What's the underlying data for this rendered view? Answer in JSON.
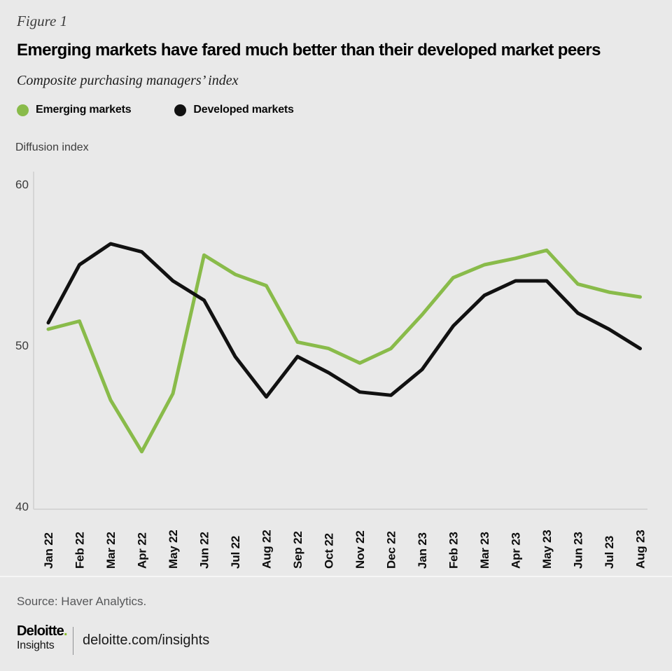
{
  "figure_label": "Figure 1",
  "title": "Emerging markets have fared much better than their developed market peers",
  "subtitle": "Composite purchasing managers’ index",
  "legend": [
    {
      "label": "Emerging markets",
      "color": "#89BB4A"
    },
    {
      "label": "Developed markets",
      "color": "#111111"
    }
  ],
  "axis_title": "Diffusion index",
  "source": "Source: Haver Analytics.",
  "footer": {
    "brand": "Deloitte",
    "brand_dot": ".",
    "brand_sub": "Insights",
    "link": "deloitte.com/insights"
  },
  "colors": {
    "background": "#e9e9e9",
    "emerging_green": "#89BB4A",
    "developed_black": "#111111",
    "axis_line": "#d5d5d5",
    "brand_dot_green": "#86BC25"
  },
  "chart_data": {
    "type": "line",
    "x": [
      "Jan 22",
      "Feb 22",
      "Mar 22",
      "Apr 22",
      "May 22",
      "Jun 22",
      "Jul 22",
      "Aug 22",
      "Sep 22",
      "Oct 22",
      "Nov 22",
      "Dec 22",
      "Jan 23",
      "Feb 23",
      "Mar 23",
      "Apr 23",
      "May 23",
      "Jun 23",
      "Jul 23",
      "Aug 23"
    ],
    "series": [
      {
        "name": "Emerging markets",
        "color": "#89BB4A",
        "values": [
          51.0,
          51.5,
          46.6,
          43.4,
          47.0,
          55.6,
          54.4,
          53.7,
          50.2,
          49.8,
          48.9,
          49.8,
          51.9,
          54.2,
          55.0,
          55.4,
          55.9,
          53.8,
          53.3,
          53.0
        ]
      },
      {
        "name": "Developed markets",
        "color": "#111111",
        "values": [
          51.4,
          55.0,
          56.3,
          55.8,
          54.0,
          52.8,
          49.3,
          46.8,
          49.3,
          48.3,
          47.1,
          46.9,
          48.5,
          51.2,
          53.1,
          54.0,
          54.0,
          52.0,
          51.0,
          49.8
        ]
      }
    ],
    "title": "Emerging markets have fared much better than their developed market peers",
    "xlabel": "",
    "ylabel": "Diffusion index",
    "yticks": [
      60,
      50,
      40
    ],
    "ylim": [
      40,
      61
    ],
    "grid": false,
    "legend_position": "top-left"
  }
}
